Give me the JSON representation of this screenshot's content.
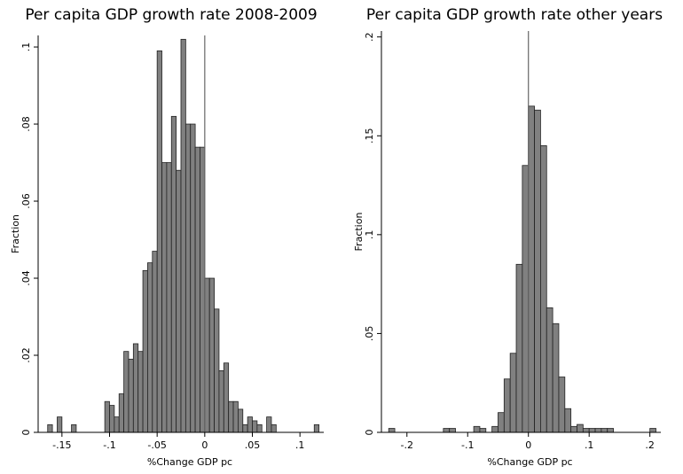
{
  "chart_data": [
    {
      "type": "histogram",
      "title": "Per capita GDP growth rate 2008-2009",
      "x_label": "%Change GDP pc",
      "y_label": "Fraction",
      "bins": [
        -0.165,
        -0.16,
        -0.155,
        -0.15,
        -0.145,
        -0.14,
        -0.135,
        -0.13,
        -0.125,
        -0.12,
        -0.115,
        -0.11,
        -0.105,
        -0.1,
        -0.095,
        -0.09,
        -0.085,
        -0.08,
        -0.075,
        -0.07,
        -0.065,
        -0.06,
        -0.055,
        -0.05,
        -0.045,
        -0.04,
        -0.035,
        -0.03,
        -0.025,
        -0.02,
        -0.015,
        -0.01,
        -0.005,
        0,
        0.005,
        0.01,
        0.015,
        0.02,
        0.025,
        0.03,
        0.035,
        0.04,
        0.045,
        0.05,
        0.055,
        0.06,
        0.065,
        0.07,
        0.075,
        0.08,
        0.085,
        0.09,
        0.095,
        0.1,
        0.105,
        0.11,
        0.115,
        0.12
      ],
      "values": [
        0.002,
        0,
        0.004,
        0,
        0,
        0.002,
        0,
        0,
        0,
        0,
        0,
        0,
        0.008,
        0.007,
        0.004,
        0.01,
        0.021,
        0.019,
        0.023,
        0.021,
        0.042,
        0.044,
        0.047,
        0.099,
        0.07,
        0.07,
        0.082,
        0.068,
        0.102,
        0.08,
        0.08,
        0.074,
        0.074,
        0.04,
        0.04,
        0.032,
        0.016,
        0.018,
        0.008,
        0.008,
        0.006,
        0.002,
        0.004,
        0.003,
        0.002,
        0,
        0.004,
        0.002,
        0,
        0,
        0,
        0,
        0,
        0,
        0,
        0,
        0.002
      ],
      "color": "#808080",
      "refline": 0,
      "xlim": [
        -0.175,
        0.125
      ],
      "ylim": [
        0,
        0.103
      ],
      "xticks": [
        {
          "value": -0.15,
          "label": "-.15"
        },
        {
          "value": -0.1,
          "label": "-.1"
        },
        {
          "value": -0.05,
          "label": "-.05"
        },
        0,
        {
          "value": 0.05,
          "label": ".05"
        },
        {
          "value": 0.1,
          "label": ".1"
        }
      ],
      "yticks": [
        0,
        {
          "value": 0.02,
          "label": ".02"
        },
        {
          "value": 0.04,
          "label": ".04"
        },
        {
          "value": 0.06,
          "label": ".06"
        },
        {
          "value": 0.08,
          "label": ".08"
        },
        {
          "value": 0.1,
          "label": ".1"
        }
      ]
    },
    {
      "type": "histogram",
      "title": "Per capita GDP growth rate other years",
      "x_label": "%Change GDP pc",
      "y_label": "Fraction",
      "bins": [
        -0.24,
        -0.23,
        -0.22,
        -0.21,
        -0.2,
        -0.19,
        -0.18,
        -0.17,
        -0.16,
        -0.15,
        -0.14,
        -0.13,
        -0.12,
        -0.11,
        -0.1,
        -0.09,
        -0.08,
        -0.07,
        -0.06,
        -0.05,
        -0.04,
        -0.03,
        -0.02,
        -0.01,
        0,
        0.01,
        0.02,
        0.03,
        0.04,
        0.05,
        0.06,
        0.07,
        0.08,
        0.09,
        0.1,
        0.11,
        0.12,
        0.13,
        0.14,
        0.15,
        0.16,
        0.17,
        0.18,
        0.19,
        0.2,
        0.21,
        0.22
      ],
      "values": [
        0,
        0.002,
        0,
        0,
        0,
        0,
        0,
        0,
        0,
        0,
        0.002,
        0.002,
        0,
        0,
        0,
        0.003,
        0.002,
        0,
        0.003,
        0.01,
        0.027,
        0.04,
        0.085,
        0.135,
        0.165,
        0.163,
        0.145,
        0.063,
        0.055,
        0.028,
        0.012,
        0.003,
        0.004,
        0.002,
        0.002,
        0.002,
        0.002,
        0.002,
        0,
        0,
        0,
        0,
        0,
        0,
        0.002,
        0
      ],
      "color": "#808080",
      "refline": 0,
      "xlim": [
        -0.242,
        0.218
      ],
      "ylim": [
        0,
        0.203
      ],
      "xticks": [
        {
          "value": -0.2,
          "label": "-.2"
        },
        {
          "value": -0.1,
          "label": "-.1"
        },
        0,
        {
          "value": 0.1,
          "label": ".1"
        },
        {
          "value": 0.2,
          "label": ".2"
        }
      ],
      "yticks": [
        0,
        {
          "value": 0.05,
          "label": ".05"
        },
        {
          "value": 0.1,
          "label": ".1"
        },
        {
          "value": 0.15,
          "label": ".15"
        },
        {
          "value": 0.2,
          "label": ".2"
        }
      ]
    }
  ]
}
